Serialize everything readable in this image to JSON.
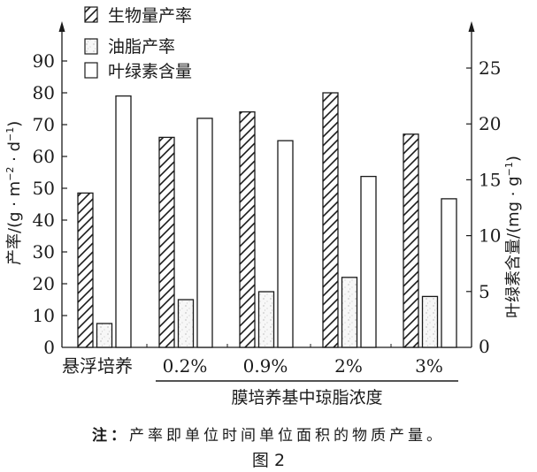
{
  "chart_data": {
    "type": "bar",
    "title": "",
    "figure_label": "图2",
    "categories": [
      "悬浮培养",
      "0.2%",
      "0.9%",
      "2%",
      "3%"
    ],
    "category_group_label": "膜培养基中琼脂浓度",
    "category_group_span": [
      "0.2%",
      "0.9%",
      "2%",
      "3%"
    ],
    "series": [
      {
        "name": "生物量产率",
        "axis": "left",
        "pattern": "hatched",
        "values": [
          48.5,
          66,
          74,
          80,
          67
        ]
      },
      {
        "name": "油脂产率",
        "axis": "left",
        "pattern": "dotted",
        "values": [
          7.5,
          15,
          17.5,
          22,
          16
        ]
      },
      {
        "name": "叶绿素含量",
        "axis": "right",
        "pattern": "white",
        "values": [
          22.5,
          20.5,
          18.5,
          15.3,
          13.3
        ]
      }
    ],
    "xlabel": "膜培养基中琼脂浓度",
    "ylabel": "产率/(g·m⁻²·d⁻¹)",
    "y2label": "叶绿素含量/(mg·g⁻¹)",
    "ylim": [
      0,
      90
    ],
    "yticks": [
      0,
      10,
      20,
      30,
      40,
      50,
      60,
      70,
      80,
      90
    ],
    "y2lim": [
      0,
      25
    ],
    "y2ticks": [
      0,
      5,
      10,
      15,
      20,
      25
    ],
    "grid": false,
    "legend_position": "top-left inside",
    "note": "注：产率即单位时间单位面积的物质产量。"
  },
  "labels": {
    "legend": [
      "生物量产率",
      "油脂产率",
      "叶绿素含量"
    ],
    "ylabel_main": "产率/(g · m",
    "ylabel_sup1": "−2",
    "ylabel_mid": " · d",
    "ylabel_sup2": "−1",
    "ylabel_end": ")",
    "y2label_main": "叶绿素含量/(mg · g",
    "y2label_sup": "−1",
    "y2label_end": ")",
    "xlabel": "膜培养基中琼脂浓度",
    "note_prefix": "注：",
    "note_body": "产率即单位时间单位面积的物质产量。",
    "figure": "图 2"
  }
}
